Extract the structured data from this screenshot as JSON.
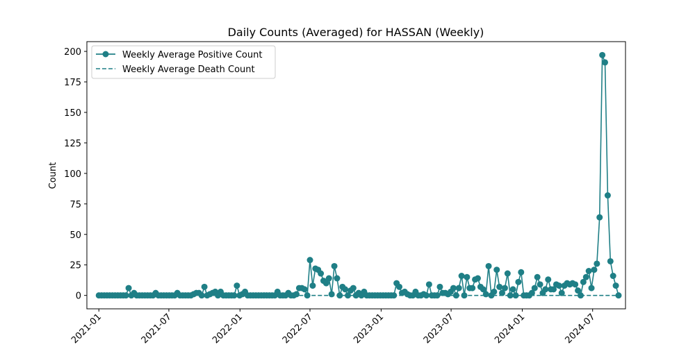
{
  "chart_data": {
    "type": "line",
    "title": "Daily Counts (Averaged) for HASSAN (Weekly)",
    "xlabel": "",
    "ylabel": "Count",
    "x_axis": {
      "type": "date",
      "range": [
        "2020-12-01",
        "2024-09-24"
      ],
      "ticks": [
        "2021-01-01",
        "2021-07-01",
        "2022-01-01",
        "2022-07-01",
        "2023-01-01",
        "2023-07-01",
        "2024-01-01",
        "2024-07-01"
      ],
      "tick_labels": [
        "2021-01",
        "2021-07",
        "2022-01",
        "2022-07",
        "2023-01",
        "2023-07",
        "2024-01",
        "2024-07"
      ]
    },
    "y_axis": {
      "range": [
        -11,
        208
      ],
      "ticks": [
        0,
        25,
        50,
        75,
        100,
        125,
        150,
        175,
        200
      ],
      "tick_labels": [
        "0",
        "25",
        "50",
        "75",
        "100",
        "125",
        "150",
        "175",
        "200"
      ]
    },
    "grid": false,
    "legend": {
      "position": "top-left"
    },
    "colors": {
      "series": "#1f7f86"
    },
    "series": [
      {
        "name": "Weekly Average Positive Count",
        "style": "solid-markers",
        "points": [
          [
            "2021-01-01",
            0
          ],
          [
            "2021-01-08",
            0
          ],
          [
            "2021-01-15",
            0
          ],
          [
            "2021-01-22",
            0
          ],
          [
            "2021-01-29",
            0
          ],
          [
            "2021-02-05",
            0
          ],
          [
            "2021-02-12",
            0
          ],
          [
            "2021-02-19",
            0
          ],
          [
            "2021-02-26",
            0
          ],
          [
            "2021-03-05",
            0
          ],
          [
            "2021-03-12",
            0
          ],
          [
            "2021-03-19",
            6
          ],
          [
            "2021-03-26",
            0
          ],
          [
            "2021-04-02",
            2
          ],
          [
            "2021-04-09",
            0
          ],
          [
            "2021-04-16",
            0
          ],
          [
            "2021-04-23",
            0
          ],
          [
            "2021-04-30",
            0
          ],
          [
            "2021-05-07",
            0
          ],
          [
            "2021-05-14",
            0
          ],
          [
            "2021-05-21",
            0
          ],
          [
            "2021-05-28",
            2
          ],
          [
            "2021-06-04",
            0
          ],
          [
            "2021-06-11",
            0
          ],
          [
            "2021-06-18",
            0
          ],
          [
            "2021-06-25",
            0
          ],
          [
            "2021-07-02",
            0
          ],
          [
            "2021-07-09",
            0
          ],
          [
            "2021-07-16",
            0
          ],
          [
            "2021-07-23",
            2
          ],
          [
            "2021-07-30",
            0
          ],
          [
            "2021-08-06",
            0
          ],
          [
            "2021-08-13",
            0
          ],
          [
            "2021-08-20",
            0
          ],
          [
            "2021-08-27",
            0
          ],
          [
            "2021-09-03",
            1
          ],
          [
            "2021-09-10",
            2
          ],
          [
            "2021-09-17",
            2
          ],
          [
            "2021-09-24",
            0
          ],
          [
            "2021-10-01",
            7
          ],
          [
            "2021-10-08",
            0
          ],
          [
            "2021-10-15",
            1
          ],
          [
            "2021-10-22",
            2
          ],
          [
            "2021-10-29",
            3
          ],
          [
            "2021-11-05",
            0
          ],
          [
            "2021-11-12",
            3
          ],
          [
            "2021-11-19",
            0
          ],
          [
            "2021-11-26",
            0
          ],
          [
            "2021-12-03",
            0
          ],
          [
            "2021-12-10",
            0
          ],
          [
            "2021-12-17",
            0
          ],
          [
            "2021-12-24",
            8
          ],
          [
            "2021-12-31",
            0
          ],
          [
            "2022-01-07",
            1
          ],
          [
            "2022-01-14",
            3
          ],
          [
            "2022-01-21",
            0
          ],
          [
            "2022-01-28",
            0
          ],
          [
            "2022-02-04",
            0
          ],
          [
            "2022-02-11",
            0
          ],
          [
            "2022-02-18",
            0
          ],
          [
            "2022-02-25",
            0
          ],
          [
            "2022-03-04",
            0
          ],
          [
            "2022-03-11",
            0
          ],
          [
            "2022-03-18",
            0
          ],
          [
            "2022-03-25",
            0
          ],
          [
            "2022-04-01",
            0
          ],
          [
            "2022-04-08",
            3
          ],
          [
            "2022-04-15",
            0
          ],
          [
            "2022-04-22",
            0
          ],
          [
            "2022-04-29",
            0
          ],
          [
            "2022-05-06",
            2
          ],
          [
            "2022-05-13",
            0
          ],
          [
            "2022-05-20",
            0
          ],
          [
            "2022-05-27",
            1
          ],
          [
            "2022-06-03",
            6
          ],
          [
            "2022-06-10",
            6
          ],
          [
            "2022-06-17",
            5
          ],
          [
            "2022-06-24",
            0
          ],
          [
            "2022-07-01",
            29
          ],
          [
            "2022-07-08",
            8
          ],
          [
            "2022-07-15",
            22
          ],
          [
            "2022-07-22",
            21
          ],
          [
            "2022-07-29",
            18
          ],
          [
            "2022-08-05",
            12
          ],
          [
            "2022-08-12",
            10
          ],
          [
            "2022-08-19",
            14
          ],
          [
            "2022-08-26",
            1
          ],
          [
            "2022-09-02",
            24
          ],
          [
            "2022-09-09",
            14
          ],
          [
            "2022-09-16",
            0
          ],
          [
            "2022-09-23",
            7
          ],
          [
            "2022-09-30",
            5
          ],
          [
            "2022-10-07",
            0
          ],
          [
            "2022-10-14",
            4
          ],
          [
            "2022-10-21",
            6
          ],
          [
            "2022-10-28",
            0
          ],
          [
            "2022-11-04",
            2
          ],
          [
            "2022-11-11",
            0
          ],
          [
            "2022-11-18",
            3
          ],
          [
            "2022-11-25",
            0
          ],
          [
            "2022-12-02",
            0
          ],
          [
            "2022-12-09",
            0
          ],
          [
            "2022-12-16",
            0
          ],
          [
            "2022-12-23",
            0
          ],
          [
            "2022-12-30",
            0
          ],
          [
            "2023-01-06",
            0
          ],
          [
            "2023-01-13",
            0
          ],
          [
            "2023-01-20",
            0
          ],
          [
            "2023-01-27",
            0
          ],
          [
            "2023-02-03",
            0
          ],
          [
            "2023-02-10",
            10
          ],
          [
            "2023-02-17",
            7
          ],
          [
            "2023-02-24",
            2
          ],
          [
            "2023-03-03",
            3
          ],
          [
            "2023-03-10",
            1
          ],
          [
            "2023-03-17",
            0
          ],
          [
            "2023-03-24",
            0
          ],
          [
            "2023-03-31",
            3
          ],
          [
            "2023-04-07",
            0
          ],
          [
            "2023-04-14",
            0
          ],
          [
            "2023-04-21",
            1
          ],
          [
            "2023-04-28",
            0
          ],
          [
            "2023-05-05",
            9
          ],
          [
            "2023-05-12",
            0
          ],
          [
            "2023-05-19",
            0
          ],
          [
            "2023-05-26",
            0
          ],
          [
            "2023-06-02",
            7
          ],
          [
            "2023-06-09",
            2
          ],
          [
            "2023-06-16",
            2
          ],
          [
            "2023-06-23",
            1
          ],
          [
            "2023-06-30",
            3
          ],
          [
            "2023-07-07",
            6
          ],
          [
            "2023-07-14",
            0
          ],
          [
            "2023-07-21",
            6
          ],
          [
            "2023-07-28",
            16
          ],
          [
            "2023-08-04",
            0
          ],
          [
            "2023-08-11",
            15
          ],
          [
            "2023-08-18",
            6
          ],
          [
            "2023-08-25",
            6
          ],
          [
            "2023-09-01",
            13
          ],
          [
            "2023-09-08",
            14
          ],
          [
            "2023-09-15",
            7
          ],
          [
            "2023-09-22",
            5
          ],
          [
            "2023-09-29",
            1
          ],
          [
            "2023-10-06",
            24
          ],
          [
            "2023-10-13",
            0
          ],
          [
            "2023-10-20",
            3
          ],
          [
            "2023-10-27",
            21
          ],
          [
            "2023-11-03",
            7
          ],
          [
            "2023-11-10",
            2
          ],
          [
            "2023-11-17",
            6
          ],
          [
            "2023-11-24",
            18
          ],
          [
            "2023-12-01",
            0
          ],
          [
            "2023-12-08",
            5
          ],
          [
            "2023-12-15",
            0
          ],
          [
            "2023-12-22",
            11
          ],
          [
            "2023-12-29",
            19
          ],
          [
            "2024-01-05",
            0
          ],
          [
            "2024-01-12",
            0
          ],
          [
            "2024-01-19",
            0
          ],
          [
            "2024-01-26",
            2
          ],
          [
            "2024-02-02",
            6
          ],
          [
            "2024-02-09",
            15
          ],
          [
            "2024-02-16",
            9
          ],
          [
            "2024-02-23",
            2
          ],
          [
            "2024-03-01",
            5
          ],
          [
            "2024-03-08",
            13
          ],
          [
            "2024-03-15",
            5
          ],
          [
            "2024-03-22",
            5
          ],
          [
            "2024-03-29",
            9
          ],
          [
            "2024-04-05",
            8
          ],
          [
            "2024-04-12",
            2
          ],
          [
            "2024-04-19",
            8
          ],
          [
            "2024-04-26",
            10
          ],
          [
            "2024-05-03",
            9
          ],
          [
            "2024-05-10",
            10
          ],
          [
            "2024-05-17",
            9
          ],
          [
            "2024-05-24",
            4
          ],
          [
            "2024-05-31",
            0
          ],
          [
            "2024-06-07",
            11
          ],
          [
            "2024-06-14",
            15
          ],
          [
            "2024-06-21",
            20
          ],
          [
            "2024-06-28",
            6
          ],
          [
            "2024-07-05",
            21
          ],
          [
            "2024-07-12",
            26
          ],
          [
            "2024-07-19",
            64
          ],
          [
            "2024-07-26",
            197
          ],
          [
            "2024-08-02",
            191
          ],
          [
            "2024-08-09",
            82
          ],
          [
            "2024-08-16",
            28
          ],
          [
            "2024-08-23",
            16
          ],
          [
            "2024-08-30",
            8
          ],
          [
            "2024-09-06",
            0
          ]
        ]
      },
      {
        "name": "Weekly Average Death Count",
        "style": "dashed",
        "points": [
          [
            "2021-01-01",
            0
          ],
          [
            "2024-09-06",
            0
          ]
        ]
      }
    ]
  }
}
